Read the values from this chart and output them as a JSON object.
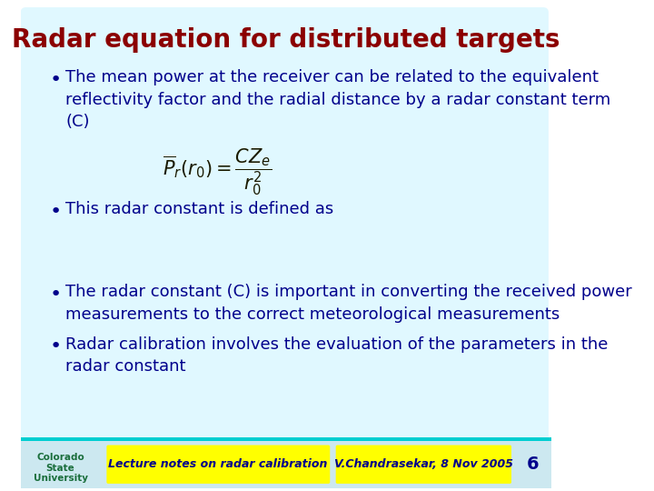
{
  "title": "Radar equation for distributed targets",
  "title_color": "#8B0000",
  "title_fontsize": 20,
  "bg_color": "#E0F8FF",
  "body_text_color": "#00008B",
  "body_fontsize": 13,
  "bullet1_line1": "The mean power at the receiver can be related to the equivalent",
  "bullet1_line2": "reflectivity factor and the radial distance by a radar constant term",
  "bullet1_line3": "(C)",
  "bullet2": "This radar constant is defined as",
  "bullet3_line1": "The radar constant (C) is important in converting the received power",
  "bullet3_line2": "measurements to the correct meteorological measurements",
  "bullet4_line1": "Radar calibration involves the evaluation of the parameters in the",
  "bullet4_line2": "radar constant",
  "footer_left_text": "Lecture notes on radar calibration",
  "footer_right_text": "V.Chandrasekar, 8 Nov 2005",
  "footer_color": "#FFFF00",
  "footer_text_color": "#00008B",
  "page_number": "6",
  "page_num_color": "#00008B",
  "footer_bar_color": "#00CED1",
  "footer_bg_color": "#cce8f0",
  "slide_bg": "#FFFFFF",
  "csu_color": "#1a6e3c"
}
